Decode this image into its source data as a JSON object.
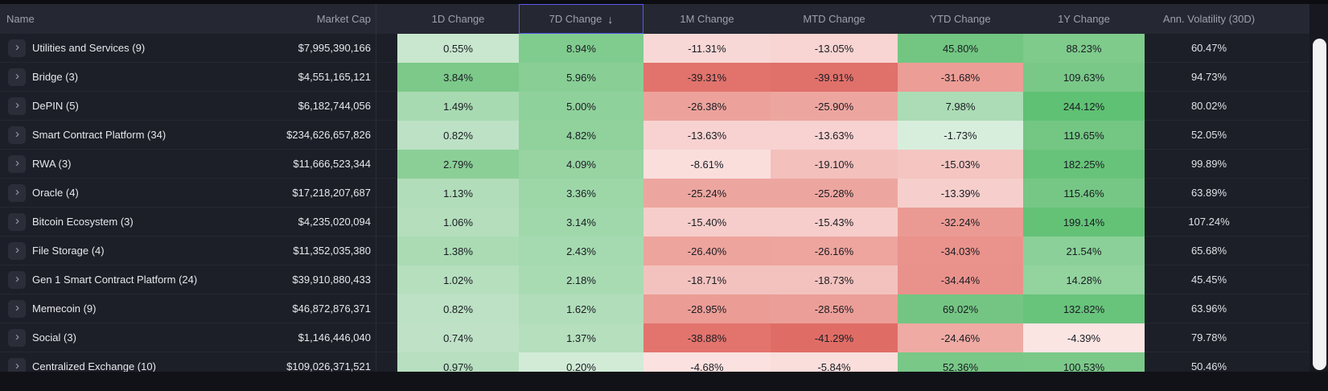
{
  "icons": {
    "expand": "›",
    "sort_desc": "↓"
  },
  "theme": {
    "accent_sort_border": "#5b57ee",
    "header_bg": "#252832",
    "row_bg": "#1d1f28",
    "positive_max": "#5fc173",
    "negative_max": "#df6d66",
    "scrollbar_thumb": "#f2f2f4"
  },
  "table": {
    "columns": [
      "Name",
      "Market Cap",
      "1D Change",
      "7D Change",
      "1M Change",
      "MTD Change",
      "YTD Change",
      "1Y Change",
      "Ann. Volatility (30D)"
    ],
    "sort": {
      "column": "7D Change",
      "direction": "desc"
    },
    "rows": [
      {
        "name": "Utilities and Services (9)",
        "market_cap": "$7,995,390,166",
        "changes": [
          "0.55%",
          "8.94%",
          "-11.31%",
          "-13.05%",
          "45.80%",
          "88.23%"
        ],
        "colors": [
          "#c8e7ce",
          "#80cc8e",
          "#f8d8d6",
          "#f8d4d2",
          "#72c681",
          "#7ecb8c"
        ],
        "volatility": "60.47%"
      },
      {
        "name": "Bridge (3)",
        "market_cap": "$4,551,165,121",
        "changes": [
          "3.84%",
          "5.96%",
          "-39.31%",
          "-39.91%",
          "-31.68%",
          "109.63%"
        ],
        "colors": [
          "#7cc98a",
          "#88ce95",
          "#e1736c",
          "#e0706a",
          "#ec9d96",
          "#79c888"
        ],
        "volatility": "94.73%"
      },
      {
        "name": "DePIN (5)",
        "market_cap": "$6,182,744,056",
        "changes": [
          "1.49%",
          "5.00%",
          "-26.38%",
          "-25.90%",
          "7.98%",
          "244.12%"
        ],
        "colors": [
          "#a8dab2",
          "#8fd19b",
          "#eca29b",
          "#eda69f",
          "#abdcb5",
          "#5fc173"
        ],
        "volatility": "80.02%"
      },
      {
        "name": "Smart Contract Platform (34)",
        "market_cap": "$234,626,657,826",
        "changes": [
          "0.82%",
          "4.82%",
          "-13.63%",
          "-13.63%",
          "-1.73%",
          "119.65%"
        ],
        "colors": [
          "#bce1c4",
          "#90d19c",
          "#f7d2d0",
          "#f7d2d0",
          "#d8eedd",
          "#74c683"
        ],
        "volatility": "52.05%"
      },
      {
        "name": "RWA (3)",
        "market_cap": "$11,666,523,344",
        "changes": [
          "2.79%",
          "4.09%",
          "-8.61%",
          "-19.10%",
          "-15.03%",
          "182.25%"
        ],
        "colors": [
          "#8bcf97",
          "#97d4a2",
          "#f9dedc",
          "#f3c0bc",
          "#f4c5c1",
          "#67c379"
        ],
        "volatility": "99.89%"
      },
      {
        "name": "Oracle (4)",
        "market_cap": "$17,218,207,687",
        "changes": [
          "1.13%",
          "3.36%",
          "-25.24%",
          "-25.28%",
          "-13.39%",
          "115.46%"
        ],
        "colors": [
          "#b2ddba",
          "#9dd7a8",
          "#eda69f",
          "#eda69f",
          "#f6cfcc",
          "#76c785"
        ],
        "volatility": "63.89%"
      },
      {
        "name": "Bitcoin Ecosystem (3)",
        "market_cap": "$4,235,020,094",
        "changes": [
          "1.06%",
          "3.14%",
          "-15.40%",
          "-15.43%",
          "-32.24%",
          "199.14%"
        ],
        "colors": [
          "#b4debc",
          "#a0d8ab",
          "#f6cdca",
          "#f6cdca",
          "#eb9a93",
          "#64c277"
        ],
        "volatility": "107.24%"
      },
      {
        "name": "File Storage (4)",
        "market_cap": "$11,352,035,380",
        "changes": [
          "1.38%",
          "2.43%",
          "-26.40%",
          "-26.16%",
          "-34.03%",
          "21.54%"
        ],
        "colors": [
          "#aadbb3",
          "#a5dab0",
          "#eda49d",
          "#eda59e",
          "#e9938c",
          "#8bd098"
        ],
        "volatility": "65.68%"
      },
      {
        "name": "Gen 1 Smart Contract Platform (24)",
        "market_cap": "$39,910,880,433",
        "changes": [
          "1.02%",
          "2.18%",
          "-18.71%",
          "-18.73%",
          "-34.44%",
          "14.28%"
        ],
        "colors": [
          "#b6dfbe",
          "#a9dbb2",
          "#f3c2be",
          "#f3c2be",
          "#e9928b",
          "#92d39e"
        ],
        "volatility": "45.45%"
      },
      {
        "name": "Memecoin (9)",
        "market_cap": "$46,872,876,371",
        "changes": [
          "0.82%",
          "1.62%",
          "-28.95%",
          "-28.56%",
          "69.02%",
          "132.82%"
        ],
        "colors": [
          "#bce1c4",
          "#b1ddba",
          "#eb9c95",
          "#eb9e97",
          "#74c583",
          "#68c37b"
        ],
        "volatility": "63.96%"
      },
      {
        "name": "Social (3)",
        "market_cap": "$1,146,446,040",
        "changes": [
          "0.74%",
          "1.37%",
          "-38.88%",
          "-41.29%",
          "-24.46%",
          "-4.39%"
        ],
        "colors": [
          "#bfe2c7",
          "#b5dfbd",
          "#e2746d",
          "#df6d66",
          "#eeaaa3",
          "#fbe5e3"
        ],
        "volatility": "79.78%"
      },
      {
        "name": "Centralized Exchange (10)",
        "market_cap": "$109,026,371,521",
        "changes": [
          "0.97%",
          "0.20%",
          "-4.68%",
          "-5.84%",
          "52.36%",
          "100.53%"
        ],
        "colors": [
          "#b7dfc0",
          "#d2ebd7",
          "#fbe2e0",
          "#fadedc",
          "#79c887",
          "#7bc989"
        ],
        "volatility": "50.46%"
      }
    ]
  }
}
